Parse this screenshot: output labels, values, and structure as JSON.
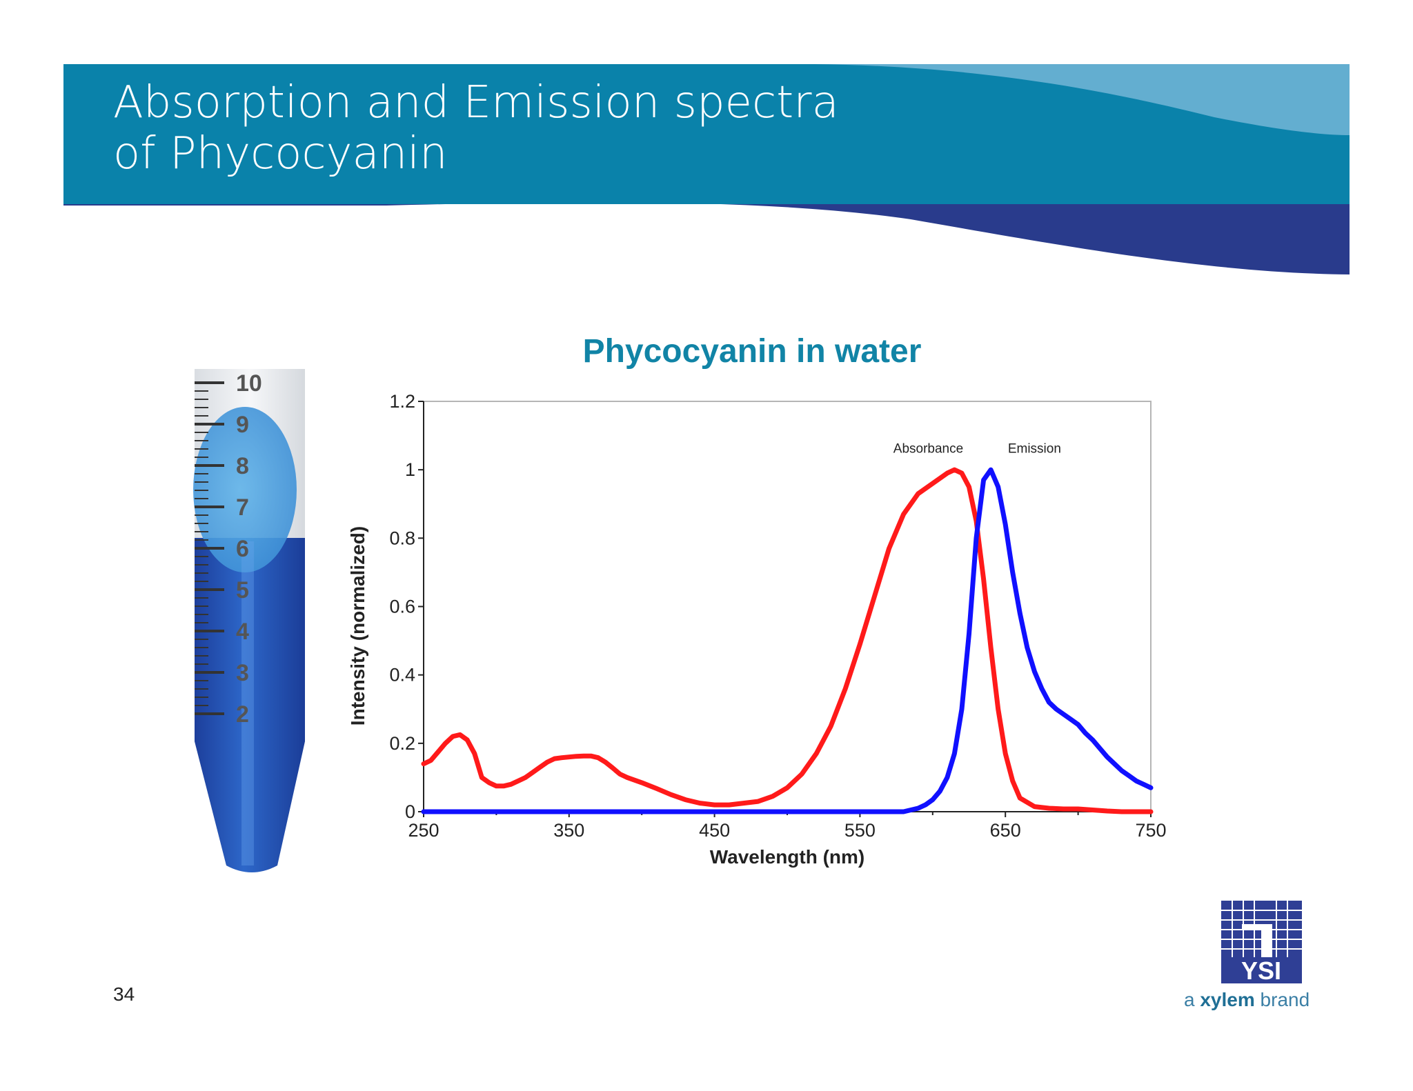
{
  "slide": {
    "title_line1": "Absorption and Emission spectra",
    "title_line2": "of Phycocyanin",
    "page_number": "34",
    "colors": {
      "banner_teal": "#0a82aa",
      "banner_light": "#63aed0",
      "banner_navy": "#293b8c"
    }
  },
  "tube": {
    "graduations": [
      "10",
      "9",
      "8",
      "7",
      "6",
      "5",
      "4",
      "3",
      "2"
    ],
    "liquid_color": "#2456b8"
  },
  "logo": {
    "name": "YSI",
    "tagline_prefix": "a ",
    "tagline_brand": "xylem",
    "tagline_suffix": " brand"
  },
  "chart_data": {
    "type": "line",
    "title": "Phycocyanin in water",
    "xlabel": "Wavelength (nm)",
    "ylabel": "Intensity (normalized)",
    "xlim": [
      250,
      750
    ],
    "ylim": [
      0,
      1.2
    ],
    "xticks": [
      250,
      350,
      450,
      550,
      650,
      750
    ],
    "yticks": [
      0,
      0.2,
      0.4,
      0.6,
      0.8,
      1,
      1.2
    ],
    "ytick_labels": [
      "0",
      "0.2",
      "0.4",
      "0.6",
      "0.8",
      "1",
      "1.2"
    ],
    "grid": false,
    "series": [
      {
        "name": "Absorbance",
        "color": "#ff1a1a",
        "x": [
          250,
          255,
          260,
          265,
          270,
          275,
          280,
          285,
          290,
          295,
          300,
          305,
          310,
          315,
          320,
          325,
          330,
          335,
          340,
          345,
          350,
          355,
          360,
          365,
          370,
          375,
          380,
          385,
          390,
          400,
          410,
          420,
          430,
          440,
          450,
          460,
          470,
          480,
          490,
          500,
          510,
          520,
          530,
          540,
          550,
          560,
          570,
          580,
          590,
          600,
          610,
          615,
          620,
          625,
          630,
          635,
          640,
          645,
          650,
          655,
          660,
          670,
          680,
          690,
          700,
          710,
          720,
          730,
          740,
          750
        ],
        "y": [
          0.14,
          0.15,
          0.175,
          0.2,
          0.22,
          0.225,
          0.21,
          0.17,
          0.1,
          0.085,
          0.075,
          0.075,
          0.08,
          0.09,
          0.1,
          0.115,
          0.13,
          0.145,
          0.155,
          0.158,
          0.16,
          0.162,
          0.163,
          0.163,
          0.158,
          0.145,
          0.128,
          0.11,
          0.1,
          0.085,
          0.068,
          0.05,
          0.035,
          0.025,
          0.02,
          0.02,
          0.025,
          0.03,
          0.045,
          0.07,
          0.11,
          0.17,
          0.25,
          0.36,
          0.49,
          0.63,
          0.77,
          0.87,
          0.93,
          0.96,
          0.99,
          1.0,
          0.99,
          0.95,
          0.85,
          0.68,
          0.48,
          0.3,
          0.17,
          0.09,
          0.04,
          0.015,
          0.01,
          0.008,
          0.008,
          0.005,
          0.002,
          0.0,
          0.0,
          0.0
        ]
      },
      {
        "name": "Emission",
        "color": "#1010ff",
        "x": [
          250,
          580,
          585,
          590,
          595,
          600,
          605,
          610,
          615,
          620,
          625,
          630,
          635,
          640,
          645,
          650,
          655,
          660,
          665,
          670,
          675,
          680,
          685,
          690,
          695,
          700,
          705,
          710,
          715,
          720,
          725,
          730,
          735,
          740,
          745,
          750
        ],
        "y": [
          0.0,
          0.0,
          0.005,
          0.01,
          0.02,
          0.035,
          0.06,
          0.1,
          0.17,
          0.3,
          0.52,
          0.8,
          0.97,
          1.0,
          0.95,
          0.84,
          0.7,
          0.58,
          0.48,
          0.41,
          0.36,
          0.32,
          0.3,
          0.285,
          0.27,
          0.255,
          0.23,
          0.21,
          0.185,
          0.16,
          0.14,
          0.12,
          0.105,
          0.09,
          0.08,
          0.07
        ]
      }
    ]
  }
}
